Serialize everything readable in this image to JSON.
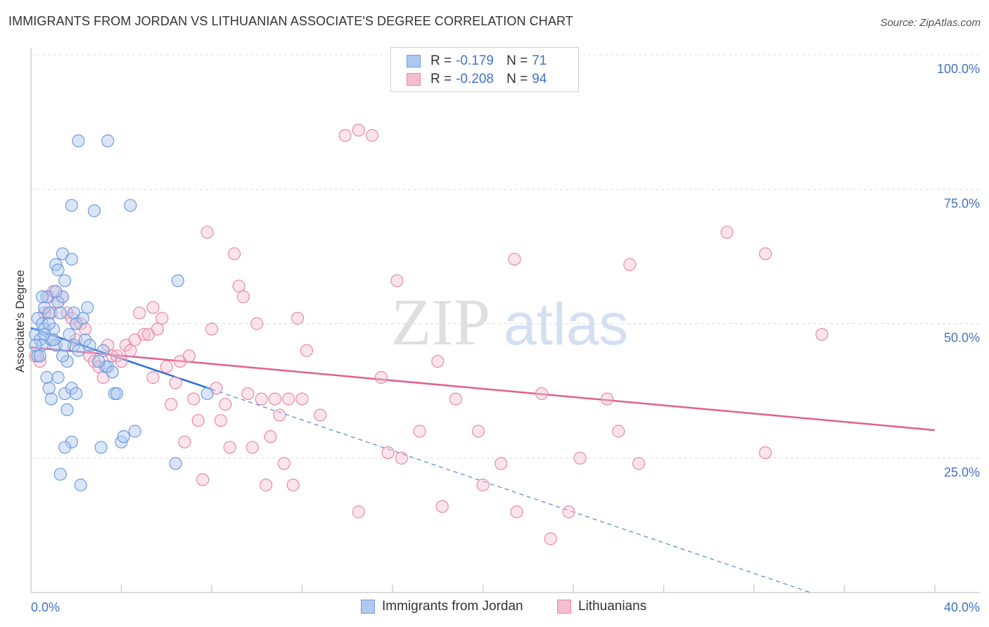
{
  "title": "IMMIGRANTS FROM JORDAN VS LITHUANIAN ASSOCIATE'S DEGREE CORRELATION CHART",
  "source": "Source: ZipAtlas.com",
  "watermark": {
    "part1": "ZIP",
    "part2": "atlas"
  },
  "legend_top": {
    "rows": [
      {
        "r_label": "R =",
        "r_value": "-0.179",
        "n_label": "N =",
        "n_value": "71",
        "color": "#aec8f0",
        "border": "#6f9be0"
      },
      {
        "r_label": "R =",
        "r_value": "-0.208",
        "n_label": "N = ",
        "n_value": "94",
        "color": "#f6bcd0",
        "border": "#e68aa8"
      }
    ]
  },
  "legend_bottom": [
    {
      "label": "Immigrants from Jordan",
      "color": "#aec8f0",
      "border": "#6f9be0"
    },
    {
      "label": "Lithuanians",
      "color": "#f6bcd0",
      "border": "#e68aa8"
    }
  ],
  "chart_data": {
    "type": "scatter",
    "title": "IMMIGRANTS FROM JORDAN VS LITHUANIAN ASSOCIATE'S DEGREE CORRELATION CHART",
    "xlabel": "",
    "ylabel": "Associate's Degree",
    "xlim": [
      0,
      40
    ],
    "ylim": [
      0,
      100
    ],
    "x_tick_labels": [
      "0.0%",
      "40.0%"
    ],
    "y_tick_labels": [
      "25.0%",
      "50.0%",
      "75.0%",
      "100.0%"
    ],
    "y_ticks": [
      25,
      50,
      75,
      100
    ],
    "grid": true,
    "series": [
      {
        "name": "Immigrants from Jordan",
        "color": "#6f9be0",
        "fill": "rgba(174,200,240,0.45)",
        "trend": {
          "x": [
            0,
            8
          ],
          "y": [
            49.2,
            37.8
          ],
          "dashed_extension": {
            "x": [
              8,
              34.5
            ],
            "y": [
              37.8,
              0
            ]
          },
          "color": "#2f6fd0"
        },
        "points": [
          [
            0.2,
            48
          ],
          [
            0.3,
            51
          ],
          [
            0.4,
            47
          ],
          [
            0.5,
            50
          ],
          [
            0.6,
            49
          ],
          [
            0.3,
            44
          ],
          [
            0.5,
            46
          ],
          [
            0.6,
            53
          ],
          [
            0.7,
            55
          ],
          [
            0.8,
            52
          ],
          [
            0.9,
            47
          ],
          [
            1.0,
            49
          ],
          [
            1.1,
            46
          ],
          [
            1.2,
            54
          ],
          [
            1.3,
            52
          ],
          [
            1.4,
            55
          ],
          [
            1.5,
            58
          ],
          [
            1.1,
            61
          ],
          [
            1.2,
            60
          ],
          [
            1.4,
            63
          ],
          [
            1.8,
            62
          ],
          [
            1.7,
            48
          ],
          [
            1.9,
            46
          ],
          [
            1.6,
            43
          ],
          [
            1.4,
            44
          ],
          [
            1.5,
            46
          ],
          [
            2.0,
            50
          ],
          [
            2.3,
            51
          ],
          [
            2.4,
            47
          ],
          [
            2.5,
            53
          ],
          [
            2.1,
            45
          ],
          [
            3.2,
            45
          ],
          [
            3.3,
            42
          ],
          [
            3.4,
            42
          ],
          [
            3.6,
            41
          ],
          [
            3.7,
            37
          ],
          [
            3.8,
            37
          ],
          [
            0.7,
            40
          ],
          [
            0.8,
            38
          ],
          [
            0.9,
            36
          ],
          [
            1.2,
            40
          ],
          [
            1.5,
            37
          ],
          [
            1.8,
            38
          ],
          [
            2.0,
            37
          ],
          [
            1.6,
            34
          ],
          [
            1.8,
            28
          ],
          [
            1.5,
            27
          ],
          [
            3.1,
            27
          ],
          [
            4.0,
            28
          ],
          [
            4.1,
            29
          ],
          [
            4.6,
            30
          ],
          [
            6.4,
            24
          ],
          [
            6.5,
            58
          ],
          [
            1.3,
            22
          ],
          [
            2.2,
            20
          ],
          [
            2.1,
            84
          ],
          [
            3.4,
            84
          ],
          [
            1.8,
            72
          ],
          [
            2.8,
            71
          ],
          [
            4.4,
            72
          ],
          [
            0.2,
            46
          ],
          [
            0.4,
            44
          ],
          [
            0.6,
            48
          ],
          [
            0.8,
            50
          ],
          [
            1.0,
            47
          ],
          [
            1.9,
            52
          ],
          [
            2.6,
            46
          ],
          [
            3.0,
            43
          ],
          [
            7.8,
            37
          ],
          [
            0.5,
            55
          ],
          [
            1.1,
            56
          ]
        ]
      },
      {
        "name": "Lithuanians",
        "color": "#e68aa8",
        "fill": "rgba(246,188,208,0.4)",
        "trend": {
          "x": [
            0,
            40
          ],
          "y": [
            45.6,
            30.2
          ],
          "color": "#e06090"
        },
        "points": [
          [
            0.2,
            44
          ],
          [
            0.4,
            43
          ],
          [
            0.6,
            52
          ],
          [
            0.8,
            55
          ],
          [
            1.0,
            56
          ],
          [
            1.2,
            54
          ],
          [
            1.4,
            55
          ],
          [
            1.6,
            52
          ],
          [
            1.8,
            51
          ],
          [
            2.0,
            50
          ],
          [
            2.2,
            50
          ],
          [
            2.4,
            49
          ],
          [
            2.6,
            44
          ],
          [
            2.8,
            43
          ],
          [
            3.0,
            42
          ],
          [
            3.2,
            40
          ],
          [
            3.4,
            46
          ],
          [
            3.6,
            44
          ],
          [
            3.8,
            44
          ],
          [
            4.0,
            43
          ],
          [
            4.2,
            46
          ],
          [
            4.4,
            45
          ],
          [
            4.6,
            47
          ],
          [
            4.8,
            52
          ],
          [
            5.0,
            48
          ],
          [
            5.2,
            48
          ],
          [
            5.4,
            40
          ],
          [
            5.6,
            49
          ],
          [
            5.8,
            51
          ],
          [
            6.0,
            42
          ],
          [
            6.2,
            35
          ],
          [
            6.4,
            39
          ],
          [
            6.6,
            43
          ],
          [
            6.8,
            28
          ],
          [
            7.0,
            44
          ],
          [
            7.2,
            36
          ],
          [
            7.4,
            32
          ],
          [
            7.6,
            21
          ],
          [
            7.8,
            67
          ],
          [
            8.0,
            49
          ],
          [
            8.2,
            38
          ],
          [
            8.4,
            32
          ],
          [
            8.6,
            35
          ],
          [
            8.8,
            27
          ],
          [
            9.0,
            63
          ],
          [
            9.2,
            57
          ],
          [
            9.4,
            55
          ],
          [
            9.6,
            37
          ],
          [
            9.8,
            27
          ],
          [
            10.0,
            50
          ],
          [
            10.2,
            36
          ],
          [
            10.4,
            20
          ],
          [
            10.6,
            29
          ],
          [
            10.8,
            36
          ],
          [
            11.0,
            33
          ],
          [
            11.2,
            24
          ],
          [
            11.4,
            36
          ],
          [
            11.6,
            20
          ],
          [
            11.8,
            51
          ],
          [
            12.0,
            36
          ],
          [
            12.2,
            45
          ],
          [
            13.9,
            85
          ],
          [
            14.5,
            86
          ],
          [
            15.1,
            85
          ],
          [
            12.8,
            33
          ],
          [
            14.5,
            15
          ],
          [
            15.5,
            40
          ],
          [
            15.8,
            26
          ],
          [
            16.2,
            58
          ],
          [
            16.4,
            25
          ],
          [
            17.2,
            30
          ],
          [
            18.0,
            43
          ],
          [
            18.2,
            16
          ],
          [
            18.8,
            36
          ],
          [
            19.8,
            30
          ],
          [
            20.0,
            20
          ],
          [
            20.8,
            24
          ],
          [
            21.5,
            15
          ],
          [
            21.4,
            62
          ],
          [
            22.6,
            37
          ],
          [
            23.0,
            10
          ],
          [
            23.8,
            15
          ],
          [
            24.3,
            25
          ],
          [
            25.5,
            36
          ],
          [
            26.0,
            30
          ],
          [
            26.5,
            61
          ],
          [
            26.9,
            24
          ],
          [
            30.8,
            67
          ],
          [
            32.5,
            63
          ],
          [
            32.5,
            26
          ],
          [
            35.0,
            48
          ],
          [
            5.4,
            53
          ],
          [
            2.0,
            47
          ],
          [
            0.9,
            52
          ]
        ]
      }
    ]
  }
}
